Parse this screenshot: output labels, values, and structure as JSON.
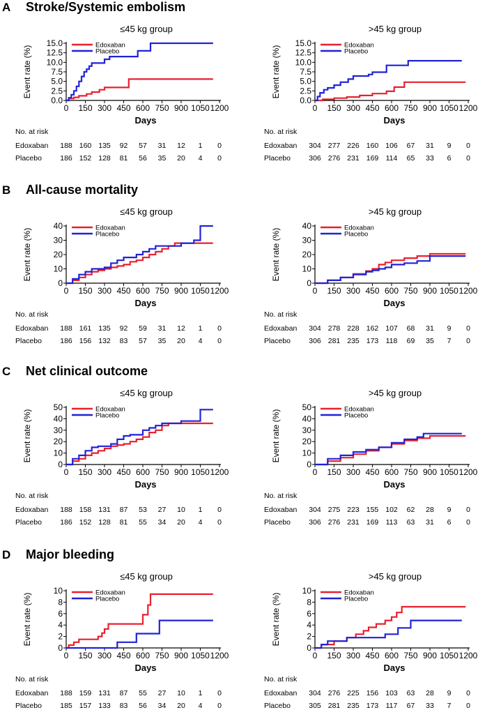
{
  "figure": {
    "risk_header": "No. at risk",
    "x_axis_label": "Days",
    "y_axis_label": "Event rate (%)"
  },
  "chart_data": [
    {
      "panel": "A",
      "panel_title": "Stroke/Systemic embolism",
      "subtitle": "≤45 kg group",
      "type": "line",
      "xlabel": "Days",
      "ylabel": "Event rate (%)",
      "xlim": [
        0,
        1200
      ],
      "xticks": [
        0,
        150,
        300,
        450,
        600,
        750,
        900,
        1050,
        1200
      ],
      "ylim": [
        0,
        15
      ],
      "yticks": [
        "0.0",
        "2.5",
        "5.0",
        "7.5",
        "10.0",
        "12.5",
        "15.0"
      ],
      "legend": [
        "Edoxaban",
        "Placebo"
      ],
      "series": [
        {
          "name": "Edoxaban",
          "color": "#e8212e",
          "x": [
            0,
            20,
            60,
            100,
            160,
            200,
            260,
            300,
            450,
            490,
            540,
            600,
            700,
            1150
          ],
          "y": [
            0,
            0.5,
            0.8,
            1.2,
            1.7,
            2.2,
            2.8,
            3.4,
            3.4,
            5.6,
            5.6,
            5.6,
            5.6,
            5.6
          ]
        },
        {
          "name": "Placebo",
          "color": "#1f23d6",
          "x": [
            0,
            20,
            40,
            60,
            80,
            100,
            120,
            140,
            160,
            180,
            200,
            230,
            300,
            340,
            400,
            500,
            560,
            630,
            660,
            700,
            1150
          ],
          "y": [
            0,
            0.7,
            1.5,
            2.5,
            3.7,
            5.0,
            6.3,
            7.5,
            8.2,
            9.0,
            9.8,
            9.8,
            10.8,
            11.5,
            11.5,
            11.5,
            13.0,
            13.0,
            15.0,
            15.0,
            15.0
          ]
        }
      ],
      "risk": [
        {
          "label": "Edoxaban",
          "values": [
            188,
            160,
            135,
            92,
            57,
            31,
            12,
            1,
            0
          ]
        },
        {
          "label": "Placebo",
          "values": [
            186,
            152,
            128,
            81,
            56,
            35,
            20,
            4,
            0
          ]
        }
      ]
    },
    {
      "panel": "A",
      "panel_title": "",
      "subtitle": ">45 kg group",
      "type": "line",
      "xlabel": "Days",
      "ylabel": "Event rate (%)",
      "xlim": [
        0,
        1200
      ],
      "xticks": [
        0,
        150,
        300,
        450,
        600,
        750,
        900,
        1050,
        1200
      ],
      "ylim": [
        0,
        15
      ],
      "yticks": [
        "0.0",
        "2.5",
        "5.0",
        "7.5",
        "10.0",
        "12.5",
        "15.0"
      ],
      "legend": [
        "Edoxaban",
        "Placebo"
      ],
      "series": [
        {
          "name": "Edoxaban",
          "color": "#e8212e",
          "x": [
            0,
            60,
            150,
            250,
            350,
            450,
            560,
            620,
            700,
            720,
            1180
          ],
          "y": [
            0,
            0.3,
            0.6,
            0.9,
            1.3,
            1.8,
            2.4,
            3.5,
            4.8,
            4.8,
            4.8
          ]
        },
        {
          "name": "Placebo",
          "color": "#1f23d6",
          "x": [
            0,
            20,
            40,
            70,
            100,
            150,
            200,
            260,
            300,
            420,
            450,
            540,
            560,
            700,
            730,
            1150
          ],
          "y": [
            0,
            1.0,
            2.0,
            2.8,
            3.3,
            4.0,
            4.8,
            5.6,
            6.4,
            6.8,
            7.4,
            7.4,
            9.2,
            9.2,
            10.4,
            10.4
          ]
        }
      ],
      "risk": [
        {
          "label": "Edoxaban",
          "values": [
            304,
            277,
            226,
            160,
            106,
            67,
            31,
            9,
            0
          ]
        },
        {
          "label": "Placebo",
          "values": [
            306,
            276,
            231,
            169,
            114,
            65,
            33,
            6,
            0
          ]
        }
      ]
    },
    {
      "panel": "B",
      "panel_title": "All-cause mortality",
      "subtitle": "≤45 kg group",
      "type": "line",
      "xlabel": "Days",
      "ylabel": "Event rate (%)",
      "xlim": [
        0,
        1200
      ],
      "xticks": [
        0,
        150,
        300,
        450,
        600,
        750,
        900,
        1050,
        1200
      ],
      "ylim": [
        0,
        40
      ],
      "yticks": [
        "0",
        "10",
        "20",
        "30",
        "40"
      ],
      "legend": [
        "Edoxaban",
        "Placebo"
      ],
      "series": [
        {
          "name": "Edoxaban",
          "color": "#e8212e",
          "x": [
            0,
            50,
            100,
            150,
            200,
            250,
            300,
            350,
            400,
            450,
            500,
            550,
            600,
            650,
            700,
            750,
            800,
            850,
            900,
            1150
          ],
          "y": [
            0,
            2,
            4,
            6,
            8,
            9,
            10,
            11,
            12,
            13,
            15,
            16,
            18,
            20,
            22,
            24,
            26,
            28,
            28,
            28
          ]
        },
        {
          "name": "Placebo",
          "color": "#1f23d6",
          "x": [
            0,
            50,
            100,
            150,
            200,
            250,
            300,
            350,
            400,
            450,
            500,
            550,
            600,
            650,
            700,
            750,
            800,
            900,
            1000,
            1050,
            1150
          ],
          "y": [
            0,
            3,
            6,
            8,
            10,
            10,
            11,
            14,
            16,
            18,
            18,
            20,
            22,
            24,
            26,
            26,
            26,
            28,
            30,
            40,
            40
          ]
        }
      ],
      "risk": [
        {
          "label": "Edoxaban",
          "values": [
            188,
            161,
            135,
            92,
            59,
            31,
            12,
            1,
            0
          ]
        },
        {
          "label": "Placebo",
          "values": [
            186,
            156,
            132,
            83,
            57,
            35,
            20,
            4,
            0
          ]
        }
      ]
    },
    {
      "panel": "B",
      "panel_title": "",
      "subtitle": ">45 kg group",
      "type": "line",
      "xlabel": "Days",
      "ylabel": "Event rate (%)",
      "xlim": [
        0,
        1200
      ],
      "xticks": [
        0,
        150,
        300,
        450,
        600,
        750,
        900,
        1050,
        1200
      ],
      "ylim": [
        0,
        40
      ],
      "yticks": [
        "0",
        "10",
        "20",
        "30",
        "40"
      ],
      "legend": [
        "Edoxaban",
        "Placebo"
      ],
      "series": [
        {
          "name": "Edoxaban",
          "color": "#e8212e",
          "x": [
            0,
            100,
            200,
            300,
            400,
            450,
            500,
            550,
            600,
            700,
            800,
            900,
            1180
          ],
          "y": [
            0,
            2,
            4,
            6.5,
            8.5,
            10,
            13,
            14.5,
            16,
            17.5,
            19,
            20.5,
            20.5
          ]
        },
        {
          "name": "Placebo",
          "color": "#1f23d6",
          "x": [
            0,
            100,
            200,
            300,
            400,
            450,
            500,
            550,
            600,
            700,
            800,
            900,
            1180
          ],
          "y": [
            0,
            2,
            4,
            6,
            8,
            9,
            10,
            11,
            13,
            14,
            15.5,
            19,
            19
          ]
        }
      ],
      "risk": [
        {
          "label": "Edoxaban",
          "values": [
            304,
            278,
            228,
            162,
            107,
            68,
            31,
            9,
            0
          ]
        },
        {
          "label": "Placebo",
          "values": [
            306,
            281,
            235,
            173,
            118,
            69,
            35,
            7,
            0
          ]
        }
      ]
    },
    {
      "panel": "C",
      "panel_title": "Net clinical outcome",
      "subtitle": "≤45 kg group",
      "type": "line",
      "xlabel": "Days",
      "ylabel": "Event rate (%)",
      "xlim": [
        0,
        1200
      ],
      "xticks": [
        0,
        150,
        300,
        450,
        600,
        750,
        900,
        1050,
        1200
      ],
      "ylim": [
        0,
        50
      ],
      "yticks": [
        "0",
        "10",
        "20",
        "30",
        "40",
        "50"
      ],
      "legend": [
        "Edoxaban",
        "Placebo"
      ],
      "series": [
        {
          "name": "Edoxaban",
          "color": "#e8212e",
          "x": [
            0,
            50,
            100,
            150,
            200,
            250,
            300,
            350,
            400,
            450,
            500,
            550,
            600,
            650,
            700,
            750,
            800,
            1150
          ],
          "y": [
            0,
            3,
            5,
            8,
            10,
            12,
            14,
            16,
            17,
            18,
            20,
            22,
            24,
            28,
            30,
            34,
            36,
            36
          ]
        },
        {
          "name": "Placebo",
          "color": "#1f23d6",
          "x": [
            0,
            50,
            100,
            150,
            200,
            250,
            300,
            350,
            400,
            450,
            500,
            550,
            600,
            650,
            700,
            750,
            900,
            1050,
            1150
          ],
          "y": [
            0,
            5,
            8,
            12,
            15,
            16,
            16,
            18,
            22,
            25,
            26,
            26,
            30,
            32,
            34,
            36,
            38,
            48,
            48
          ]
        }
      ],
      "risk": [
        {
          "label": "Edoxaban",
          "values": [
            188,
            158,
            131,
            87,
            53,
            27,
            10,
            1,
            0
          ]
        },
        {
          "label": "Placebo",
          "values": [
            186,
            152,
            128,
            81,
            55,
            34,
            20,
            4,
            0
          ]
        }
      ]
    },
    {
      "panel": "C",
      "panel_title": "",
      "subtitle": ">45 kg group",
      "type": "line",
      "xlabel": "Days",
      "ylabel": "Event rate (%)",
      "xlim": [
        0,
        1200
      ],
      "xticks": [
        0,
        150,
        300,
        450,
        600,
        750,
        900,
        1050,
        1200
      ],
      "ylim": [
        0,
        50
      ],
      "yticks": [
        "0",
        "10",
        "20",
        "30",
        "40",
        "50"
      ],
      "legend": [
        "Edoxaban",
        "Placebo"
      ],
      "series": [
        {
          "name": "Edoxaban",
          "color": "#e8212e",
          "x": [
            0,
            100,
            200,
            300,
            400,
            500,
            600,
            700,
            800,
            900,
            1180
          ],
          "y": [
            0,
            3,
            6,
            9,
            12,
            15,
            18,
            21,
            23,
            25,
            25
          ]
        },
        {
          "name": "Placebo",
          "color": "#1f23d6",
          "x": [
            0,
            100,
            200,
            300,
            400,
            500,
            600,
            700,
            800,
            850,
            1150
          ],
          "y": [
            0,
            5,
            8,
            11,
            13,
            15,
            19,
            22,
            24,
            27,
            27
          ]
        }
      ],
      "risk": [
        {
          "label": "Edoxaban",
          "values": [
            304,
            275,
            223,
            155,
            102,
            62,
            28,
            9,
            0
          ]
        },
        {
          "label": "Placebo",
          "values": [
            306,
            276,
            231,
            169,
            113,
            63,
            31,
            6,
            0
          ]
        }
      ]
    },
    {
      "panel": "D",
      "panel_title": "Major bleeding",
      "subtitle": "≤45 kg group",
      "type": "line",
      "xlabel": "Days",
      "ylabel": "Event rate (%)",
      "xlim": [
        0,
        1200
      ],
      "xticks": [
        0,
        150,
        300,
        450,
        600,
        750,
        900,
        1050,
        1200
      ],
      "ylim": [
        0,
        10
      ],
      "yticks": [
        "0",
        "2",
        "4",
        "6",
        "8",
        "10"
      ],
      "legend": [
        "Edoxaban",
        "Placebo"
      ],
      "series": [
        {
          "name": "Edoxaban",
          "color": "#e8212e",
          "x": [
            0,
            20,
            60,
            100,
            250,
            280,
            300,
            330,
            500,
            600,
            640,
            660,
            1150
          ],
          "y": [
            0,
            0.5,
            1.0,
            1.5,
            2.0,
            2.6,
            3.3,
            4.2,
            4.2,
            5.8,
            7.5,
            9.4,
            9.4
          ]
        },
        {
          "name": "Placebo",
          "color": "#1f23d6",
          "x": [
            0,
            400,
            550,
            700,
            730,
            1150
          ],
          "y": [
            0,
            1.0,
            2.5,
            2.5,
            4.8,
            4.8
          ]
        }
      ],
      "risk": [
        {
          "label": "Edoxaban",
          "values": [
            188,
            159,
            131,
            87,
            55,
            27,
            10,
            1,
            0
          ]
        },
        {
          "label": "Placebo",
          "values": [
            185,
            157,
            133,
            83,
            56,
            34,
            20,
            4,
            0
          ]
        }
      ]
    },
    {
      "panel": "D",
      "panel_title": "",
      "subtitle": ">45 kg group",
      "type": "line",
      "xlabel": "Days",
      "ylabel": "Event rate (%)",
      "xlim": [
        0,
        1200
      ],
      "xticks": [
        0,
        150,
        300,
        450,
        600,
        750,
        900,
        1050,
        1200
      ],
      "ylim": [
        0,
        10
      ],
      "yticks": [
        "0",
        "2",
        "4",
        "6",
        "8",
        "10"
      ],
      "legend": [
        "Edoxaban",
        "Placebo"
      ],
      "series": [
        {
          "name": "Edoxaban",
          "color": "#e8212e",
          "x": [
            0,
            50,
            150,
            250,
            320,
            380,
            420,
            480,
            550,
            600,
            640,
            680,
            1180
          ],
          "y": [
            0,
            0.6,
            1.2,
            1.8,
            2.4,
            3.0,
            3.6,
            4.2,
            4.8,
            5.4,
            6.2,
            7.2,
            7.2
          ]
        },
        {
          "name": "Placebo",
          "color": "#1f23d6",
          "x": [
            0,
            50,
            100,
            150,
            250,
            350,
            550,
            650,
            750,
            1150
          ],
          "y": [
            0,
            0.6,
            1.2,
            1.2,
            1.8,
            1.8,
            2.4,
            3.5,
            4.8,
            4.8
          ]
        }
      ],
      "risk": [
        {
          "label": "Edoxaban",
          "values": [
            304,
            276,
            225,
            156,
            103,
            63,
            28,
            9,
            0
          ]
        },
        {
          "label": "Placebo",
          "values": [
            305,
            281,
            235,
            173,
            117,
            67,
            33,
            7,
            0
          ]
        }
      ]
    }
  ]
}
